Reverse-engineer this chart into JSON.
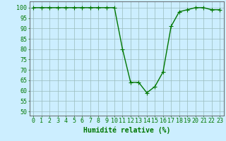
{
  "x": [
    0,
    1,
    2,
    3,
    4,
    5,
    6,
    7,
    8,
    9,
    10,
    11,
    12,
    13,
    14,
    15,
    16,
    17,
    18,
    19,
    20,
    21,
    22,
    23
  ],
  "y": [
    100,
    100,
    100,
    100,
    100,
    100,
    100,
    100,
    100,
    100,
    100,
    80,
    64,
    64,
    59,
    62,
    69,
    91,
    98,
    99,
    100,
    100,
    99,
    99
  ],
  "line_color": "#007700",
  "marker": "+",
  "bg_color": "#cceeff",
  "grid_color": "#99bbbb",
  "xlabel": "Humidité relative (%)",
  "xlabel_color": "#007700",
  "xlabel_fontsize": 7,
  "ytick_labels": [
    "50",
    "55",
    "60",
    "65",
    "70",
    "75",
    "80",
    "85",
    "90",
    "95",
    "100"
  ],
  "ytick_values": [
    50,
    55,
    60,
    65,
    70,
    75,
    80,
    85,
    90,
    95,
    100
  ],
  "xlim": [
    -0.5,
    23.5
  ],
  "ylim": [
    48,
    103
  ],
  "tick_fontsize": 6,
  "linewidth": 1.0,
  "markersize": 4,
  "markeredgewidth": 0.8
}
